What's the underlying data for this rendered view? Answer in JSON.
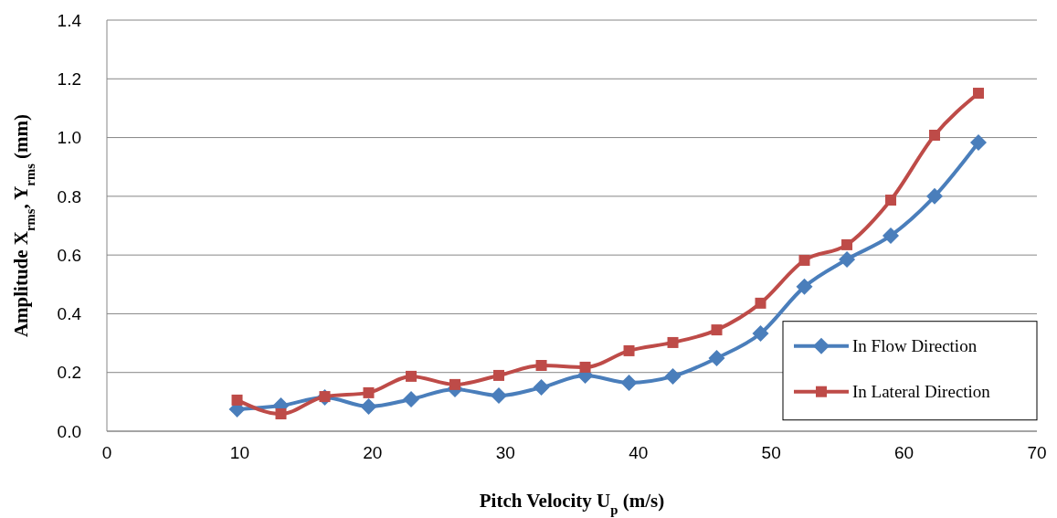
{
  "chart_data": {
    "type": "line",
    "xlabel": "Pitch Velocity U$_{p}$ (m/s)",
    "ylabel": "Amplitude X$_{rms}$, Y$_{rms}$ (mm)",
    "x": [
      9.8,
      13.1,
      16.4,
      19.7,
      22.9,
      26.2,
      29.5,
      32.7,
      36.0,
      39.3,
      42.6,
      45.9,
      49.2,
      52.5,
      55.7,
      59.0,
      62.3,
      65.6
    ],
    "series": [
      {
        "name": "In Flow Direction",
        "color": "#4a7ebb",
        "marker": "diamond",
        "values": [
          0.075,
          0.087,
          0.115,
          0.084,
          0.109,
          0.143,
          0.121,
          0.149,
          0.19,
          0.165,
          0.187,
          0.249,
          0.333,
          0.492,
          0.585,
          0.666,
          0.8,
          0.983
        ]
      },
      {
        "name": "In Lateral Direction",
        "color": "#be4b48",
        "marker": "square",
        "values": [
          0.106,
          0.059,
          0.118,
          0.131,
          0.187,
          0.159,
          0.19,
          0.224,
          0.218,
          0.274,
          0.302,
          0.345,
          0.436,
          0.582,
          0.635,
          0.787,
          1.008,
          1.151
        ]
      }
    ],
    "xlim": [
      0,
      70
    ],
    "xticks": [
      0,
      10,
      20,
      30,
      40,
      50,
      60,
      70
    ],
    "ylim": [
      0,
      1.4
    ],
    "yticks": [
      {
        "value": 0,
        "label": "0.0"
      },
      {
        "value": 0.2,
        "label": "0.2"
      },
      {
        "value": 0.4,
        "label": "0.4"
      },
      {
        "value": 0.6,
        "label": "0.6"
      },
      {
        "value": 0.8,
        "label": "0.8"
      },
      {
        "value": 1.0,
        "label": "1.0"
      },
      {
        "value": 1.2,
        "label": "1.2"
      },
      {
        "value": 1.4,
        "label": "1.4"
      }
    ],
    "grid": "y",
    "legend": "right",
    "line_style": "solid"
  }
}
